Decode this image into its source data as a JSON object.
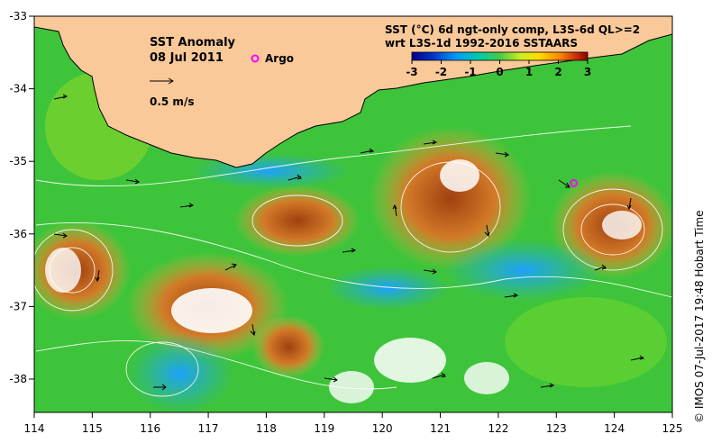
{
  "title": {
    "line1": "SST Anomaly",
    "line2": "08 Jul 2011"
  },
  "legend": {
    "argo_label": "Argo",
    "vector_label": "0.5 m/s",
    "colorbar_title_line1": "SST (°C) 6d ngt-only comp, L3S-6d QL>=2",
    "colorbar_title_line2": "wrt L3S-1d 1992-2016 SSTAARS",
    "colorbar_ticks": [
      "-3",
      "-2",
      "-1",
      "0",
      "1",
      "2",
      "3"
    ]
  },
  "axes": {
    "x_ticks": [
      "114",
      "115",
      "116",
      "117",
      "118",
      "119",
      "120",
      "121",
      "122",
      "123",
      "124",
      "125"
    ],
    "y_ticks": [
      "-33",
      "-34",
      "-35",
      "-36",
      "-37",
      "-38"
    ]
  },
  "credit": "© IMOS 07-Jul-2017 19:48 Hobart Time",
  "argo_float": {
    "lon": 123.3,
    "lat": -35.3
  },
  "colors": {
    "land": "#f9c99a",
    "argo": "#ff00ff",
    "contour": "#ffffff",
    "vector": "#000000"
  },
  "colorbar_colors": [
    "#00008b",
    "#0044dd",
    "#00aaff",
    "#22cc88",
    "#88dd22",
    "#ffee00",
    "#ff9900",
    "#dd4400",
    "#8b0000"
  ]
}
